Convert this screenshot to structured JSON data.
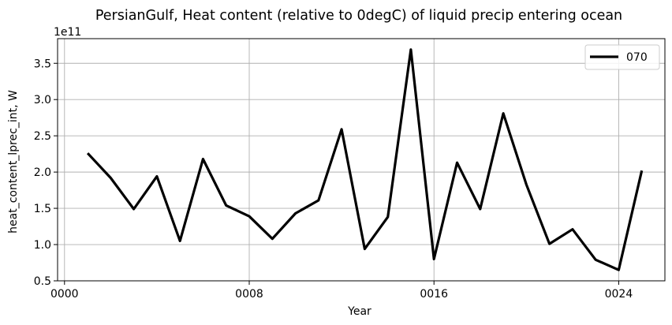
{
  "chart_data": {
    "type": "line",
    "title": "PersianGulf, Heat content (relative to 0degC) of liquid precip entering ocean",
    "xlabel": "Year",
    "ylabel": "heat_content_lprec_int, W",
    "y_offset_label": "1e11",
    "xlim": [
      -0.3,
      26.0
    ],
    "ylim": [
      0.5,
      3.84
    ],
    "x_ticks": [
      0,
      8,
      16,
      24
    ],
    "x_tick_labels": [
      "0000",
      "0008",
      "0016",
      "0024"
    ],
    "y_ticks": [
      0.5,
      1.0,
      1.5,
      2.0,
      2.5,
      3.0,
      3.5
    ],
    "y_tick_labels": [
      "0.5",
      "1.0",
      "1.5",
      "2.0",
      "2.5",
      "3.0",
      "3.5"
    ],
    "grid": true,
    "legend_position": "top-right",
    "series": [
      {
        "name": "070",
        "color": "#000000",
        "x": [
          1,
          2,
          3,
          4,
          5,
          6,
          7,
          8,
          9,
          10,
          11,
          12,
          13,
          14,
          15,
          16,
          17,
          18,
          19,
          20,
          21,
          22,
          23,
          24,
          25
        ],
        "values": [
          2.26,
          1.92,
          1.49,
          1.94,
          1.05,
          2.18,
          1.54,
          1.39,
          1.08,
          1.43,
          1.61,
          2.59,
          0.94,
          1.38,
          3.69,
          0.8,
          2.13,
          1.49,
          2.81,
          1.83,
          1.01,
          1.21,
          0.79,
          0.65,
          2.02
        ]
      }
    ]
  }
}
